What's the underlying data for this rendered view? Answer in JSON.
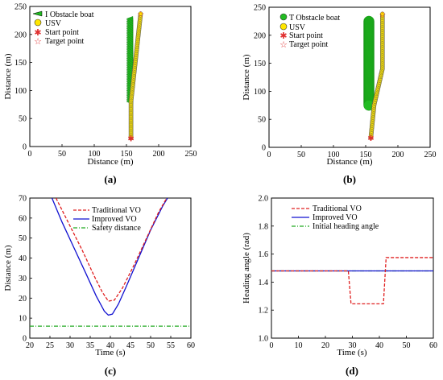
{
  "chart_data": [
    {
      "panel": "a",
      "type": "scatter",
      "panel_label": "(a)",
      "xlabel": "Distance (m)",
      "ylabel": "Distance (m)",
      "xlim": [
        0,
        250
      ],
      "ylim": [
        0,
        250
      ],
      "xticks": [
        0,
        50,
        100,
        150,
        200,
        250
      ],
      "yticks": [
        0,
        50,
        100,
        150,
        200,
        250
      ],
      "grid": false,
      "legend_position": "top-left",
      "legend": [
        "I Obstacle boat",
        "USV",
        "Start point",
        "Target point"
      ],
      "colors": {
        "obstacle": "#22bb22",
        "usv": "#ffe600",
        "marker": "#e03030"
      },
      "obstacle_track": {
        "x": [
          155,
          155
        ],
        "y": [
          228,
          80
        ],
        "style": "triangles"
      },
      "usv_path": {
        "x": [
          157,
          157,
          172
        ],
        "y": [
          15,
          80,
          237
        ]
      },
      "start_point": {
        "x": 157,
        "y": 15
      },
      "target_point": {
        "x": 172,
        "y": 237
      }
    },
    {
      "panel": "b",
      "type": "scatter",
      "panel_label": "(b)",
      "xlabel": "Distance (m)",
      "ylabel": "Distance (m)",
      "xlim": [
        0,
        250
      ],
      "ylim": [
        0,
        250
      ],
      "xticks": [
        0,
        50,
        100,
        150,
        200,
        250
      ],
      "yticks": [
        0,
        50,
        100,
        150,
        200,
        250
      ],
      "grid": false,
      "legend_position": "top-left",
      "legend": [
        "T Obstacle boat",
        "USV",
        "Start point",
        "Target point"
      ],
      "colors": {
        "obstacle": "#22bb22",
        "usv": "#ffe600",
        "marker": "#e03030"
      },
      "obstacle_track": {
        "x": [
          155,
          155
        ],
        "y": [
          225,
          75
        ],
        "style": "circles"
      },
      "usv_path": {
        "x": [
          158,
          163,
          176,
          176
        ],
        "y": [
          17,
          75,
          140,
          238
        ]
      },
      "start_point": {
        "x": 158,
        "y": 17
      },
      "target_point": {
        "x": 176,
        "y": 238
      }
    },
    {
      "panel": "c",
      "type": "line",
      "panel_label": "(c)",
      "xlabel": "Time (s)",
      "ylabel": "Distance (m)",
      "xlim": [
        20,
        60
      ],
      "ylim": [
        0,
        70
      ],
      "xticks": [
        20,
        25,
        30,
        35,
        40,
        45,
        50,
        55,
        60
      ],
      "yticks": [
        0,
        10,
        20,
        30,
        40,
        50,
        60,
        70
      ],
      "grid": false,
      "legend_position": "top-center",
      "series": [
        {
          "name": "Traditional VO",
          "color": "#e02020",
          "dash": "dashed",
          "x": [
            26.5,
            30,
            33,
            36,
            38,
            39.5,
            41,
            43,
            46,
            49,
            52,
            54
          ],
          "y": [
            70,
            56,
            44,
            31,
            23,
            18.5,
            19,
            25,
            37,
            50,
            63,
            70
          ]
        },
        {
          "name": "Improved VO",
          "color": "#1010d0",
          "dash": "solid",
          "x": [
            25.5,
            28,
            31,
            34,
            36.5,
            38.5,
            39.5,
            40.5,
            42,
            44,
            47,
            50,
            53,
            54.2
          ],
          "y": [
            70,
            58,
            45,
            32,
            21,
            13.5,
            11.5,
            12,
            17,
            26,
            40,
            54,
            66,
            70
          ]
        },
        {
          "name": "Safety distance",
          "color": "#22aa22",
          "dash": "dashdot",
          "x": [
            20,
            60
          ],
          "y": [
            6,
            6
          ]
        }
      ]
    },
    {
      "panel": "d",
      "type": "line",
      "panel_label": "(d)",
      "xlabel": "Time (s)",
      "ylabel": "Heading angle  (rad)",
      "xlim": [
        0,
        60
      ],
      "ylim": [
        1.0,
        2.0
      ],
      "xticks": [
        0,
        10,
        20,
        30,
        40,
        50,
        60
      ],
      "yticks": [
        1.0,
        1.2,
        1.4,
        1.6,
        1.8,
        2.0
      ],
      "grid": false,
      "legend_position": "top-right",
      "series": [
        {
          "name": "Traditional VO",
          "color": "#e02020",
          "dash": "dashed",
          "x": [
            0,
            28.5,
            29.5,
            41.5,
            42.5,
            60
          ],
          "y": [
            1.48,
            1.48,
            1.245,
            1.245,
            1.575,
            1.575
          ]
        },
        {
          "name": "Improved VO",
          "color": "#1010d0",
          "dash": "solid",
          "x": [
            0,
            60
          ],
          "y": [
            1.48,
            1.48
          ]
        },
        {
          "name": "Initial heading angle",
          "color": "#22aa22",
          "dash": "dashdot",
          "x": [
            0,
            60
          ],
          "y": [
            1.48,
            1.48
          ]
        }
      ]
    }
  ]
}
